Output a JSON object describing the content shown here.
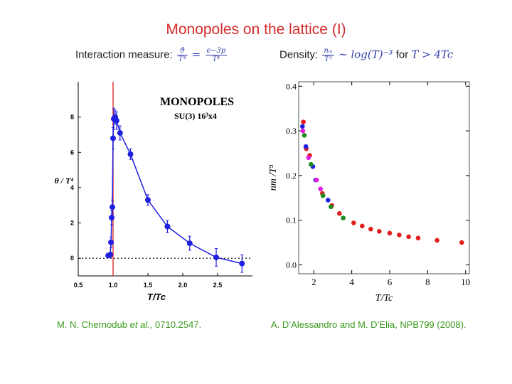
{
  "slide": {
    "title": "Monopoles on the lattice (I)",
    "left_formula_label": "Interaction measure:",
    "left_formula_lhs_num": "ϑ",
    "left_formula_lhs_den": "T⁴",
    "left_formula_eq": "=",
    "left_formula_rhs_num": "ϵ−3p",
    "left_formula_rhs_den": "T⁴",
    "right_formula_label": "Density:",
    "right_formula_lhs_num": "nₘ",
    "right_formula_lhs_den": "T³",
    "right_formula_rel": "∼ log(T)⁻³",
    "right_formula_for": "for",
    "right_formula_cond": "T > 4Tc",
    "left_reference_prefix": "M. N. Chernodub ",
    "left_reference_etal": "et al.",
    "left_reference_suffix": ", 0710.2547.",
    "right_reference": "A. D’Alessandro and M. D’Elia, NPB799 (2008)."
  },
  "chart_data": [
    {
      "type": "scatter",
      "title": "MONOPOLES",
      "subtitle": "SU(3) 16³x4",
      "xlabel": "T/Tc",
      "ylabel": "θ / T⁴",
      "xlim": [
        0.5,
        3.0
      ],
      "ylim": [
        -1,
        10
      ],
      "xticks": [
        "0.5",
        "1.0",
        "1.5",
        "2.0",
        "2.5"
      ],
      "yticks": [
        "0",
        "2",
        "4",
        "6",
        "8"
      ],
      "vertical_line_x": 1.0,
      "dotted_zero_line": true,
      "series": [
        {
          "name": "SU(3) 16³x4",
          "color": "#1f1fe0",
          "points": [
            {
              "x": 0.93,
              "y": 0.15,
              "err": 0.1
            },
            {
              "x": 0.96,
              "y": 0.2,
              "err": 0.15
            },
            {
              "x": 0.97,
              "y": 0.9,
              "err": 0.3
            },
            {
              "x": 0.98,
              "y": 2.3,
              "err": 0.4
            },
            {
              "x": 0.99,
              "y": 2.9,
              "err": 0.4
            },
            {
              "x": 1.0,
              "y": 6.8,
              "err": 0.6
            },
            {
              "x": 1.01,
              "y": 7.9,
              "err": 0.6
            },
            {
              "x": 1.03,
              "y": 8.0,
              "err": 0.4
            },
            {
              "x": 1.05,
              "y": 7.8,
              "err": 0.5
            },
            {
              "x": 1.1,
              "y": 7.1,
              "err": 0.4
            },
            {
              "x": 1.25,
              "y": 5.9,
              "err": 0.3
            },
            {
              "x": 1.5,
              "y": 3.3,
              "err": 0.3
            },
            {
              "x": 1.78,
              "y": 1.8,
              "err": 0.35
            },
            {
              "x": 2.1,
              "y": 0.85,
              "err": 0.4
            },
            {
              "x": 2.48,
              "y": 0.05,
              "err": 0.5
            },
            {
              "x": 2.85,
              "y": -0.3,
              "err": 0.5
            }
          ]
        }
      ]
    },
    {
      "type": "scatter",
      "title": "",
      "xlabel": "T/Tc",
      "ylabel": "nm /T³",
      "xlim": [
        1.2,
        10.2
      ],
      "ylim": [
        -0.02,
        0.41
      ],
      "xticks": [
        "2",
        "4",
        "6",
        "8",
        "10"
      ],
      "yticks": [
        "0.0",
        "0.1",
        "0.2",
        "0.3",
        "0.4"
      ],
      "series": [
        {
          "name": "red",
          "color": "#e01e1e",
          "points": [
            {
              "x": 1.45,
              "y": 0.32
            },
            {
              "x": 1.6,
              "y": 0.26
            },
            {
              "x": 1.78,
              "y": 0.245
            },
            {
              "x": 2.45,
              "y": 0.16
            },
            {
              "x": 2.95,
              "y": 0.133
            },
            {
              "x": 3.35,
              "y": 0.115
            },
            {
              "x": 4.1,
              "y": 0.094
            },
            {
              "x": 4.55,
              "y": 0.087
            },
            {
              "x": 5.0,
              "y": 0.08
            },
            {
              "x": 5.45,
              "y": 0.075
            },
            {
              "x": 6.0,
              "y": 0.071
            },
            {
              "x": 6.5,
              "y": 0.067
            },
            {
              "x": 7.0,
              "y": 0.063
            },
            {
              "x": 7.5,
              "y": 0.06
            },
            {
              "x": 8.5,
              "y": 0.055
            },
            {
              "x": 9.8,
              "y": 0.05
            }
          ]
        },
        {
          "name": "blue",
          "color": "#1e1ee0",
          "points": [
            {
              "x": 1.4,
              "y": 0.31
            },
            {
              "x": 1.58,
              "y": 0.265
            },
            {
              "x": 1.95,
              "y": 0.22
            },
            {
              "x": 2.1,
              "y": 0.19
            },
            {
              "x": 2.75,
              "y": 0.145
            }
          ]
        },
        {
          "name": "magenta",
          "color": "#e020e0",
          "points": [
            {
              "x": 1.42,
              "y": 0.3
            },
            {
              "x": 1.72,
              "y": 0.24
            },
            {
              "x": 2.15,
              "y": 0.19
            },
            {
              "x": 2.35,
              "y": 0.17
            }
          ]
        },
        {
          "name": "green",
          "color": "#1e8a1e",
          "points": [
            {
              "x": 1.5,
              "y": 0.29
            },
            {
              "x": 1.85,
              "y": 0.225
            },
            {
              "x": 2.48,
              "y": 0.155
            },
            {
              "x": 2.9,
              "y": 0.13
            },
            {
              "x": 3.55,
              "y": 0.105
            }
          ]
        }
      ]
    }
  ]
}
